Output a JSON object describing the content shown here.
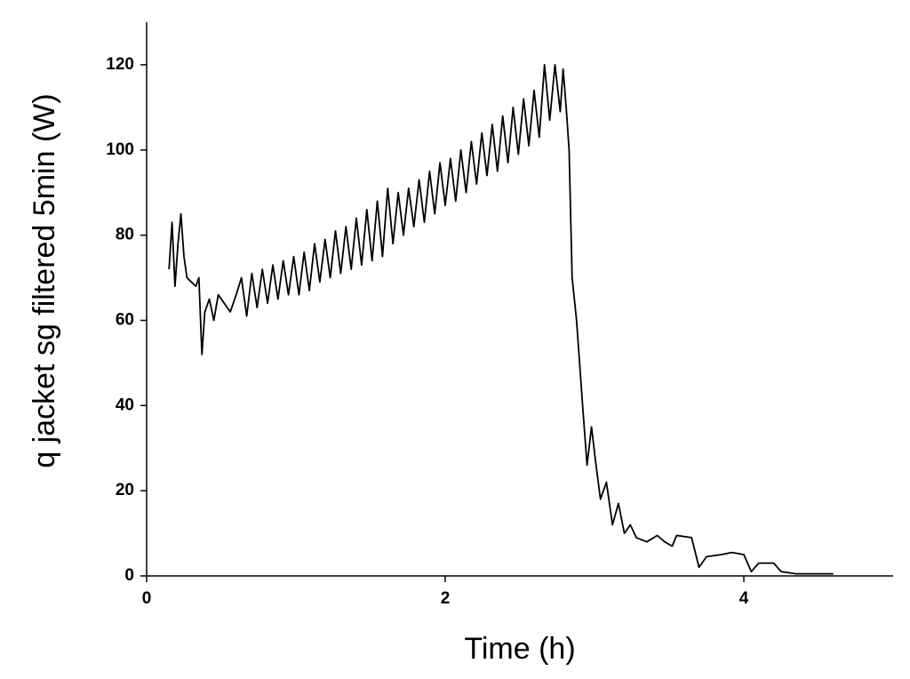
{
  "chart_data": {
    "type": "line",
    "x_label": "Time (h)",
    "y_label": "q jacket sg filtered 5min (W)",
    "color": "#000000",
    "xlim": [
      0,
      5
    ],
    "xticks": [
      0,
      2,
      4
    ],
    "ylim": [
      0,
      130
    ],
    "yticks": [
      0,
      20,
      40,
      60,
      80,
      100,
      120
    ],
    "grid": false,
    "x": [
      0.15,
      0.17,
      0.19,
      0.21,
      0.23,
      0.25,
      0.27,
      0.3,
      0.33,
      0.35,
      0.37,
      0.39,
      0.42,
      0.45,
      0.48,
      0.52,
      0.56,
      0.6,
      0.635,
      0.67,
      0.705,
      0.74,
      0.775,
      0.81,
      0.845,
      0.88,
      0.915,
      0.95,
      0.985,
      1.02,
      1.055,
      1.09,
      1.125,
      1.16,
      1.195,
      1.23,
      1.265,
      1.3,
      1.335,
      1.37,
      1.405,
      1.44,
      1.475,
      1.51,
      1.545,
      1.58,
      1.615,
      1.65,
      1.685,
      1.72,
      1.755,
      1.79,
      1.825,
      1.86,
      1.895,
      1.93,
      1.965,
      2.0,
      2.035,
      2.07,
      2.105,
      2.14,
      2.175,
      2.21,
      2.245,
      2.28,
      2.315,
      2.35,
      2.385,
      2.42,
      2.455,
      2.49,
      2.525,
      2.56,
      2.595,
      2.63,
      2.665,
      2.7,
      2.735,
      2.77,
      2.79,
      2.81,
      2.83,
      2.85,
      2.88,
      2.92,
      2.95,
      2.98,
      3.01,
      3.04,
      3.08,
      3.12,
      3.16,
      3.2,
      3.24,
      3.28,
      3.35,
      3.42,
      3.47,
      3.52,
      3.55,
      3.65,
      3.7,
      3.75,
      3.85,
      3.92,
      4.0,
      4.05,
      4.1,
      4.2,
      4.25,
      4.35,
      4.6
    ],
    "values": [
      72,
      83,
      68,
      78,
      85,
      75,
      70,
      69,
      68,
      70,
      52,
      62,
      65,
      60,
      66,
      64,
      62,
      66,
      70,
      61,
      71,
      63,
      72,
      64,
      73,
      65,
      74,
      66,
      75,
      66,
      76,
      67,
      78,
      69,
      79,
      70,
      81,
      71,
      82,
      72,
      84,
      73,
      86,
      74,
      88,
      75,
      91,
      78,
      90,
      80,
      91,
      82,
      93,
      83,
      95,
      85,
      97,
      87,
      98,
      88,
      100,
      90,
      102,
      92,
      104,
      94,
      106,
      95,
      108,
      97,
      110,
      99,
      112,
      101,
      114,
      103,
      120,
      107,
      120,
      109,
      119,
      110,
      100,
      70,
      60,
      40,
      26,
      35,
      26,
      18,
      22,
      12,
      17,
      10,
      12,
      9,
      8,
      9.5,
      8,
      7,
      9.5,
      9,
      2,
      4.5,
      5,
      5.5,
      5,
      1,
      3,
      3,
      1,
      0.5,
      0.5
    ]
  }
}
